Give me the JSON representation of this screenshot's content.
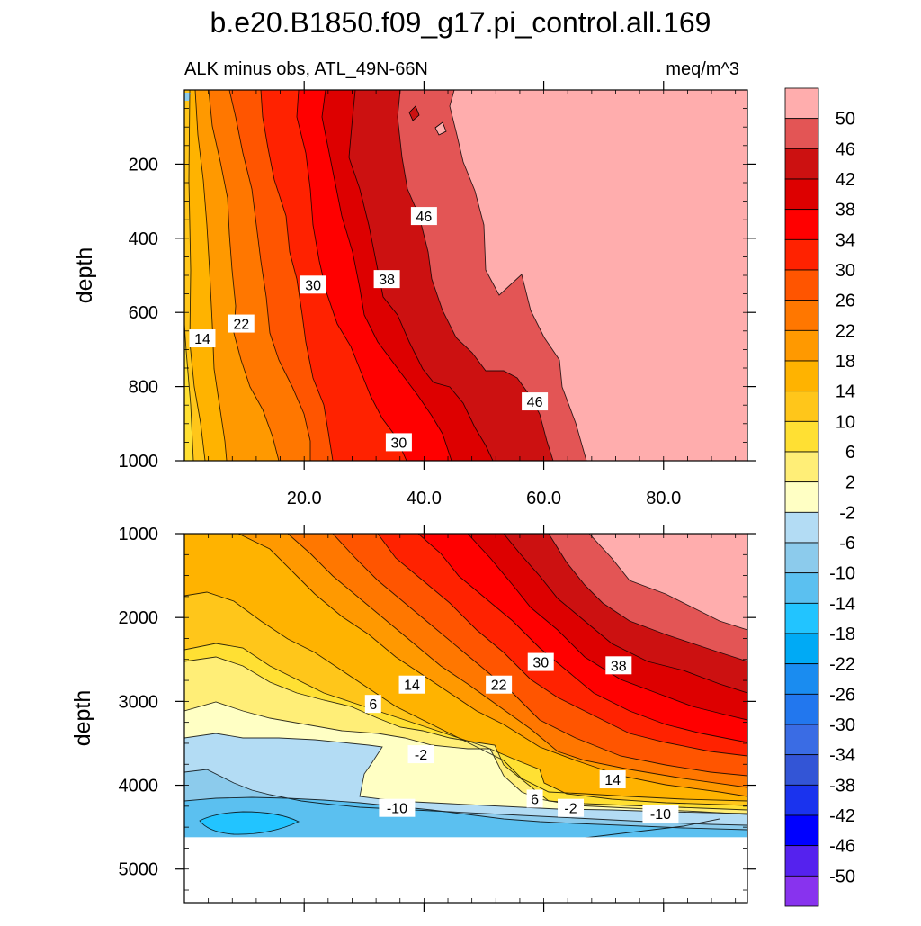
{
  "chart_data": {
    "type": "contour",
    "title": "b.e20.B1850.f09_g17.pi_control.all.169",
    "subtitle_left": "ALK minus obs, ATL_49N-66N",
    "subtitle_right": "meq/m^3",
    "xlabel": "",
    "ylabel": "depth",
    "xlim": [
      0,
      94
    ],
    "x_ticks": [
      20,
      40,
      60,
      80
    ],
    "x_tick_labels": [
      "20.0",
      "40.0",
      "60.0",
      "80.0"
    ],
    "panels": [
      {
        "name": "upper",
        "ylim": [
          0,
          1000
        ],
        "y_ticks": [
          200,
          400,
          600,
          800,
          1000
        ],
        "y_tick_labels": [
          "200",
          "400",
          "600",
          "800",
          "1000"
        ],
        "contour_labels": [
          {
            "text": "46",
            "x": 40.0,
            "y": 340
          },
          {
            "text": "30",
            "x": 21.5,
            "y": 525
          },
          {
            "text": "38",
            "x": 33.8,
            "y": 510
          },
          {
            "text": "22",
            "x": 9.5,
            "y": 630
          },
          {
            "text": "14",
            "x": 3.0,
            "y": 670
          },
          {
            "text": "46",
            "x": 58.5,
            "y": 840
          },
          {
            "text": "30",
            "x": 35.8,
            "y": 950
          }
        ]
      },
      {
        "name": "lower",
        "ylim": [
          1000,
          5400
        ],
        "y_ticks": [
          1000,
          2000,
          3000,
          4000,
          5000
        ],
        "y_tick_labels": [
          "1000",
          "2000",
          "3000",
          "4000",
          "5000"
        ],
        "mask_below_depth": 4620,
        "contour_labels": [
          {
            "text": "30",
            "x": 59.5,
            "y": 2530
          },
          {
            "text": "38",
            "x": 72.5,
            "y": 2570
          },
          {
            "text": "14",
            "x": 38.0,
            "y": 2800
          },
          {
            "text": "22",
            "x": 52.5,
            "y": 2800
          },
          {
            "text": "6",
            "x": 31.5,
            "y": 3030
          },
          {
            "text": "-2",
            "x": 39.5,
            "y": 3630
          },
          {
            "text": "14",
            "x": 71.5,
            "y": 3930
          },
          {
            "text": "6",
            "x": 58.5,
            "y": 4160
          },
          {
            "text": "-2",
            "x": 64.5,
            "y": 4270
          },
          {
            "text": "-10",
            "x": 35.5,
            "y": 4270
          },
          {
            "text": "-10",
            "x": 79.5,
            "y": 4340
          }
        ]
      }
    ],
    "colorbar": {
      "labels": [
        "50",
        "46",
        "42",
        "38",
        "34",
        "30",
        "26",
        "22",
        "18",
        "14",
        "10",
        "6",
        "2",
        "-2",
        "-6",
        "-10",
        "-14",
        "-18",
        "-22",
        "-26",
        "-30",
        "-34",
        "-38",
        "-42",
        "-46",
        "-50"
      ],
      "colors": [
        "#ffadad",
        "#e35555",
        "#cc1111",
        "#dd0000",
        "#ff0000",
        "#ff2200",
        "#ff5500",
        "#ff7700",
        "#ff9900",
        "#ffb300",
        "#ffc61a",
        "#ffe033",
        "#ffee77",
        "#ffffc4",
        "#b3dcf4",
        "#8ccbec",
        "#5bc0f0",
        "#22c4ff",
        "#00aaf5",
        "#1a8cf0",
        "#2277ee",
        "#3a6ce4",
        "#3355d6",
        "#1a33ee",
        "#0000ff",
        "#5522ee",
        "#8833ee"
      ]
    }
  }
}
